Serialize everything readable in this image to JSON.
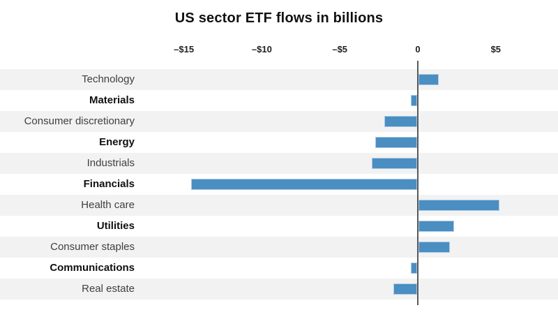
{
  "title": "US sector ETF flows in billions",
  "chart_data": {
    "type": "bar",
    "orientation": "horizontal",
    "title": "US sector ETF flows in billions",
    "unit": "billions of dollars",
    "categories": [
      "Technology",
      "Materials",
      "Consumer discretionary",
      "Energy",
      "Industrials",
      "Financials",
      "Health care",
      "Utilities",
      "Consumer staples",
      "Communications",
      "Real estate"
    ],
    "values": [
      1.3,
      -0.4,
      -2.1,
      -2.7,
      -2.9,
      -14.5,
      5.2,
      2.3,
      2.0,
      -0.4,
      -1.5
    ],
    "x_ticks": [
      {
        "label": "–$15",
        "value": -15
      },
      {
        "label": "–$10",
        "value": -10
      },
      {
        "label": "–$5",
        "value": -5
      },
      {
        "label": "0",
        "value": 0
      },
      {
        "label": "$5",
        "value": 5
      }
    ],
    "xlim": [
      -17,
      9
    ],
    "xlabel": "",
    "ylabel": "",
    "legend": "none",
    "grid": false,
    "row_striping": true,
    "colors": {
      "bar": "#4a8ec2",
      "bar_edge": "#aecbe6",
      "band": "#f2f2f2",
      "band_alt": "#ffffff",
      "axis_line": "#58595b",
      "label": "#3f3f3f",
      "label_bold": "#101010",
      "tick_label": "#1f1f1f",
      "title": "#111111"
    }
  }
}
